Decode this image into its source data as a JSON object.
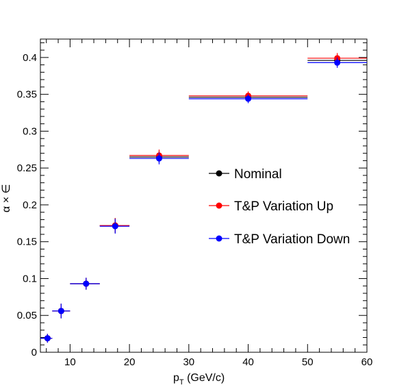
{
  "chart_data": {
    "type": "scatter",
    "title": "",
    "xlabel": "p",
    "xlabel_sub": "T",
    "xlabel_unit": " (GeV/c)",
    "ylabel": "α × ∈",
    "xlim": [
      5,
      60
    ],
    "ylim": [
      0,
      0.425
    ],
    "xticks": [
      10,
      20,
      30,
      40,
      50,
      60
    ],
    "yticks": [
      0,
      0.05,
      0.1,
      0.15,
      0.2,
      0.25,
      0.3,
      0.35,
      0.4
    ],
    "ytick_labels": [
      "0",
      "0.05",
      "0.1",
      "0.15",
      "0.2",
      "0.25",
      "0.3",
      "0.35",
      "0.4"
    ],
    "grid": false,
    "legend_position": "center-right",
    "bins": [
      [
        5,
        7
      ],
      [
        7,
        10
      ],
      [
        10,
        15
      ],
      [
        15,
        20
      ],
      [
        20,
        30
      ],
      [
        30,
        50
      ],
      [
        50,
        60
      ]
    ],
    "series": [
      {
        "name": "Nominal",
        "color": "#000000",
        "x": [
          6.2,
          8.5,
          12.7,
          17.6,
          25.0,
          40.0,
          55.0
        ],
        "y": [
          0.019,
          0.056,
          0.093,
          0.172,
          0.265,
          0.346,
          0.396
        ],
        "yerr": [
          0.006,
          0.01,
          0.008,
          0.01,
          0.008,
          0.006,
          0.007
        ]
      },
      {
        "name": "T&P Variation Up",
        "color": "#ff0000",
        "x": [
          6.2,
          8.5,
          12.7,
          17.6,
          25.0,
          40.0,
          55.0
        ],
        "y": [
          0.019,
          0.056,
          0.093,
          0.172,
          0.267,
          0.348,
          0.399
        ],
        "yerr": [
          0.006,
          0.01,
          0.008,
          0.01,
          0.008,
          0.006,
          0.007
        ]
      },
      {
        "name": "T&P Variation Down",
        "color": "#0000ff",
        "x": [
          6.2,
          8.5,
          12.7,
          17.6,
          25.0,
          40.0,
          55.0
        ],
        "y": [
          0.019,
          0.056,
          0.093,
          0.171,
          0.263,
          0.344,
          0.393
        ],
        "yerr": [
          0.006,
          0.01,
          0.008,
          0.01,
          0.008,
          0.006,
          0.007
        ]
      }
    ]
  }
}
